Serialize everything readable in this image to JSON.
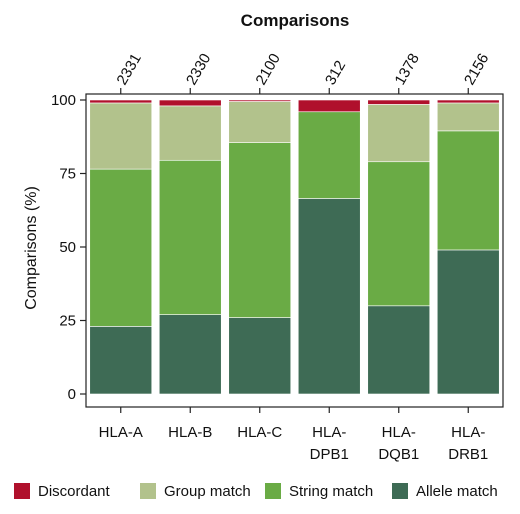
{
  "chart_data": {
    "type": "bar",
    "stacked": true,
    "top_axis_title": "Comparisons",
    "ylabel": "Comparisons (%)",
    "ylim": [
      0,
      100
    ],
    "yticks": [
      0,
      25,
      50,
      75,
      100
    ],
    "categories": [
      [
        "HLA-A"
      ],
      [
        "HLA-B"
      ],
      [
        "HLA-C"
      ],
      [
        "HLA-",
        "DPB1"
      ],
      [
        "HLA-",
        "DQB1"
      ],
      [
        "HLA-",
        "DRB1"
      ]
    ],
    "comparison_counts": [
      "2331",
      "2330",
      "2100",
      "312",
      "1378",
      "2156"
    ],
    "series": [
      {
        "name": "Allele match",
        "color": "#3e6b55",
        "values": [
          23,
          27,
          26,
          66.5,
          30,
          49
        ]
      },
      {
        "name": "String match",
        "color": "#6aab45",
        "values": [
          53.5,
          52.5,
          59.5,
          29.5,
          49,
          40.5
        ]
      },
      {
        "name": "Group match",
        "color": "#b2c28c",
        "values": [
          22.5,
          18.5,
          14,
          0,
          19.5,
          9.5
        ]
      },
      {
        "name": "Discordant",
        "color": "#b0102c",
        "values": [
          1,
          2,
          0.5,
          4,
          1.5,
          1
        ]
      }
    ],
    "legend_order": [
      "Discordant",
      "Group match",
      "String match",
      "Allele match"
    ],
    "legend_position": "bottom",
    "grid": false
  }
}
